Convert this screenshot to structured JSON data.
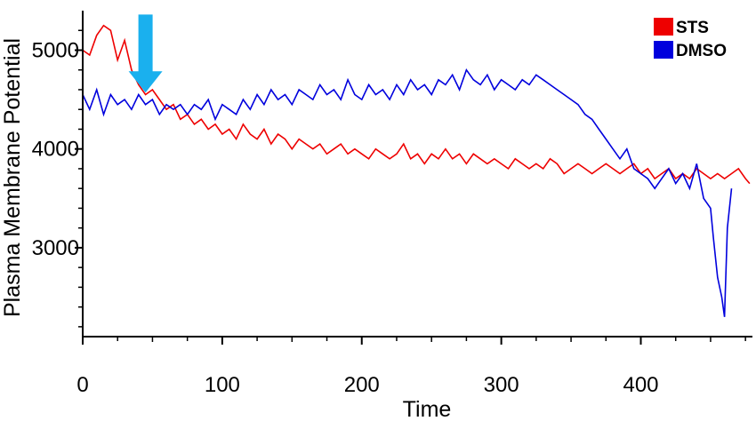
{
  "chart_data": {
    "type": "line",
    "xlabel": "Time",
    "ylabel": "Plasma Membrane Potential",
    "xlim": [
      0,
      480
    ],
    "ylim": [
      2100,
      5400
    ],
    "x_ticks": [
      0,
      100,
      200,
      300,
      400
    ],
    "y_ticks": [
      3000,
      4000,
      5000
    ],
    "legend_position": "top-right",
    "colors": {
      "STS": "#ee0000",
      "DMSO": "#0000dd",
      "arrow": "#1ab0ee"
    },
    "annotation": {
      "type": "arrow",
      "x": 45,
      "y_top": 5360,
      "y_tip": 4570
    },
    "series": [
      {
        "name": "STS",
        "x": [
          0,
          5,
          10,
          15,
          20,
          25,
          30,
          35,
          40,
          45,
          50,
          55,
          60,
          65,
          70,
          75,
          80,
          85,
          90,
          95,
          100,
          105,
          110,
          115,
          120,
          125,
          130,
          135,
          140,
          145,
          150,
          155,
          160,
          165,
          170,
          175,
          180,
          185,
          190,
          195,
          200,
          205,
          210,
          215,
          220,
          225,
          230,
          235,
          240,
          245,
          250,
          255,
          260,
          265,
          270,
          275,
          280,
          285,
          290,
          295,
          300,
          305,
          310,
          315,
          320,
          325,
          330,
          335,
          340,
          345,
          350,
          355,
          360,
          365,
          370,
          375,
          380,
          385,
          390,
          395,
          400,
          405,
          410,
          415,
          420,
          425,
          430,
          435,
          440,
          445,
          450,
          455,
          460,
          465,
          470,
          475,
          478
        ],
        "values": [
          5000,
          4950,
          5150,
          5250,
          5200,
          4900,
          5100,
          4800,
          4650,
          4550,
          4600,
          4500,
          4400,
          4450,
          4300,
          4350,
          4250,
          4300,
          4200,
          4250,
          4150,
          4200,
          4100,
          4250,
          4150,
          4100,
          4200,
          4050,
          4150,
          4100,
          4000,
          4100,
          4050,
          4000,
          4050,
          3950,
          4000,
          4050,
          3950,
          4000,
          3950,
          3900,
          4000,
          3950,
          3900,
          3950,
          4050,
          3900,
          3950,
          3850,
          3950,
          3900,
          4000,
          3900,
          3950,
          3850,
          3950,
          3900,
          3850,
          3900,
          3850,
          3800,
          3900,
          3850,
          3800,
          3850,
          3800,
          3900,
          3850,
          3750,
          3800,
          3850,
          3800,
          3750,
          3800,
          3850,
          3800,
          3750,
          3800,
          3850,
          3750,
          3800,
          3700,
          3750,
          3800,
          3700,
          3750,
          3700,
          3800,
          3750,
          3700,
          3750,
          3700,
          3750,
          3800,
          3700,
          3650
        ]
      },
      {
        "name": "DMSO",
        "x": [
          0,
          5,
          10,
          15,
          20,
          25,
          30,
          35,
          40,
          45,
          50,
          55,
          60,
          65,
          70,
          75,
          80,
          85,
          90,
          95,
          100,
          105,
          110,
          115,
          120,
          125,
          130,
          135,
          140,
          145,
          150,
          155,
          160,
          165,
          170,
          175,
          180,
          185,
          190,
          195,
          200,
          205,
          210,
          215,
          220,
          225,
          230,
          235,
          240,
          245,
          250,
          255,
          260,
          265,
          270,
          275,
          280,
          285,
          290,
          295,
          300,
          305,
          310,
          315,
          320,
          325,
          330,
          335,
          340,
          345,
          350,
          355,
          360,
          365,
          370,
          375,
          380,
          385,
          390,
          395,
          400,
          405,
          410,
          415,
          420,
          425,
          430,
          435,
          440,
          445,
          450,
          452,
          455,
          458,
          460,
          462,
          465
        ],
        "values": [
          4550,
          4400,
          4600,
          4350,
          4550,
          4450,
          4500,
          4400,
          4550,
          4450,
          4500,
          4350,
          4450,
          4400,
          4450,
          4350,
          4450,
          4400,
          4500,
          4300,
          4450,
          4400,
          4350,
          4500,
          4400,
          4550,
          4450,
          4600,
          4500,
          4550,
          4450,
          4600,
          4550,
          4500,
          4650,
          4550,
          4600,
          4500,
          4700,
          4550,
          4500,
          4650,
          4550,
          4600,
          4500,
          4650,
          4550,
          4700,
          4600,
          4650,
          4550,
          4700,
          4650,
          4750,
          4600,
          4800,
          4700,
          4650,
          4750,
          4600,
          4700,
          4650,
          4600,
          4700,
          4650,
          4750,
          4700,
          4650,
          4600,
          4550,
          4500,
          4450,
          4350,
          4300,
          4200,
          4100,
          4000,
          3900,
          4000,
          3800,
          3750,
          3700,
          3600,
          3700,
          3800,
          3650,
          3750,
          3600,
          3850,
          3500,
          3400,
          3100,
          2700,
          2500,
          2300,
          3200,
          3600
        ]
      }
    ]
  }
}
